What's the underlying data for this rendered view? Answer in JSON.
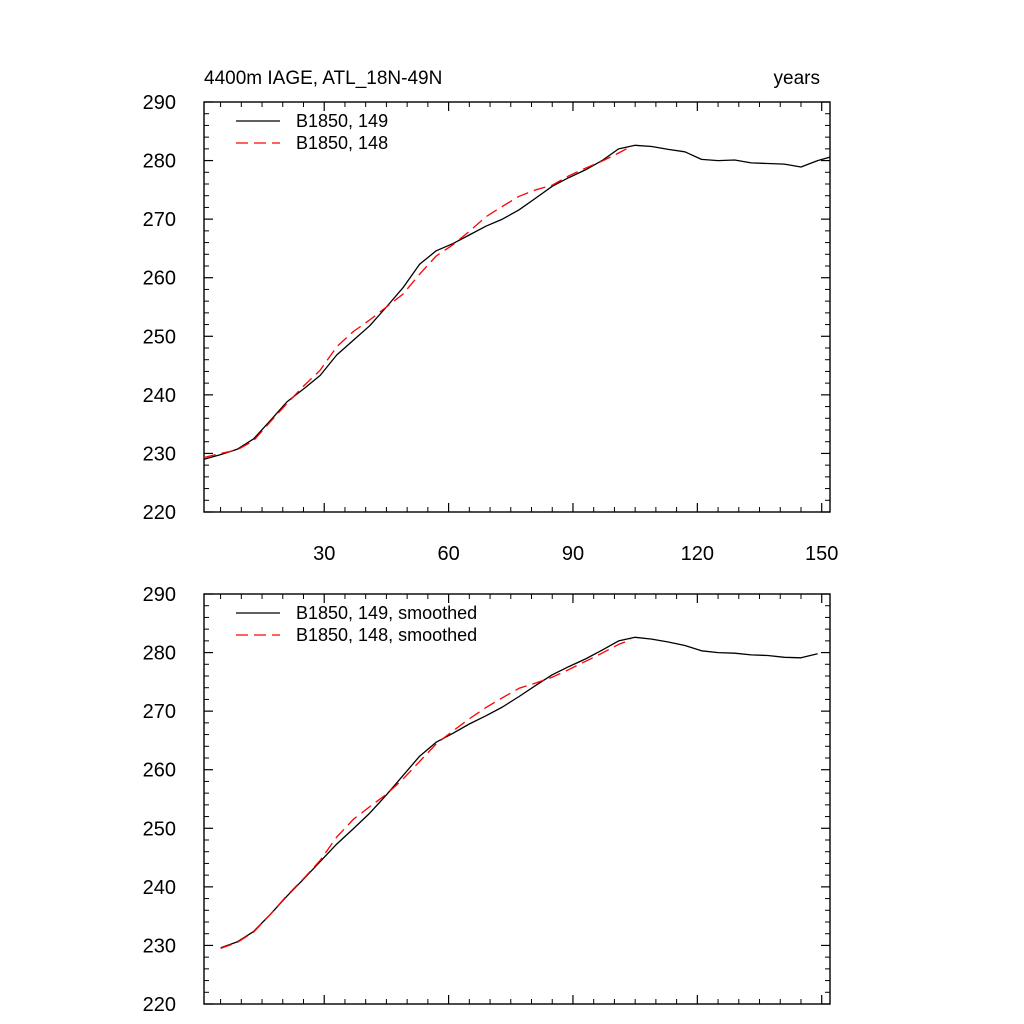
{
  "chart_data": [
    {
      "type": "line",
      "title": "4400m IAGE, ATL_18N-49N",
      "right_title": "years",
      "xlabel": "",
      "ylabel": "",
      "xlim": [
        1,
        152
      ],
      "ylim": [
        220,
        290
      ],
      "x_ticks": [
        30,
        60,
        90,
        120,
        150
      ],
      "y_ticks": [
        220,
        230,
        240,
        250,
        260,
        270,
        280,
        290
      ],
      "x_tick_labels": [
        "30",
        "60",
        "90",
        "120",
        "150"
      ],
      "y_tick_labels": [
        "220",
        "230",
        "240",
        "250",
        "260",
        "270",
        "280",
        "290"
      ],
      "show_x_tick_labels": true,
      "grid": false,
      "legend_position": "top-left",
      "series": [
        {
          "name": "B1850, 149",
          "color": "#000000",
          "dash": "solid",
          "x": [
            1,
            5,
            9,
            13,
            17,
            21,
            25,
            29,
            33,
            37,
            41,
            45,
            49,
            53,
            57,
            61,
            65,
            69,
            73,
            77,
            81,
            85,
            89,
            93,
            97,
            101,
            105,
            109,
            113,
            117,
            121,
            125,
            129,
            133,
            137,
            141,
            145,
            149,
            152
          ],
          "y": [
            229.0,
            229.8,
            230.7,
            232.5,
            235.6,
            238.8,
            241.0,
            243.3,
            246.8,
            249.3,
            251.8,
            255.0,
            258.3,
            262.3,
            264.6,
            265.8,
            267.3,
            268.8,
            270.0,
            271.6,
            273.6,
            275.6,
            277.1,
            278.4,
            280.0,
            282.0,
            282.6,
            282.4,
            281.9,
            281.5,
            280.2,
            280.0,
            280.1,
            279.6,
            279.5,
            279.4,
            278.9,
            280.0,
            280.6
          ]
        },
        {
          "name": "B1850, 148",
          "color": "#ff0000",
          "dash": "dashed",
          "x": [
            1,
            5,
            9,
            13,
            17,
            21,
            25,
            29,
            33,
            37,
            41,
            45,
            49,
            53,
            57,
            61,
            65,
            69,
            73,
            77,
            81,
            85,
            89,
            93,
            97,
            101,
            104
          ],
          "y": [
            229.3,
            230.0,
            230.6,
            232.2,
            235.4,
            238.5,
            241.5,
            244.2,
            248.2,
            250.8,
            252.8,
            255.0,
            257.2,
            260.6,
            263.7,
            265.6,
            267.9,
            270.4,
            272.2,
            273.9,
            275.0,
            275.8,
            277.4,
            278.7,
            279.9,
            281.3,
            282.4
          ]
        }
      ]
    },
    {
      "type": "line",
      "title": "",
      "xlabel": "",
      "ylabel": "",
      "xlim": [
        1,
        152
      ],
      "ylim": [
        220,
        290
      ],
      "x_ticks": [
        30,
        60,
        90,
        120,
        150
      ],
      "y_ticks": [
        220,
        230,
        240,
        250,
        260,
        270,
        280,
        290
      ],
      "x_tick_labels": [],
      "y_tick_labels": [
        "220",
        "230",
        "240",
        "250",
        "260",
        "270",
        "280",
        "290"
      ],
      "show_x_tick_labels": false,
      "grid": false,
      "legend_position": "top-left",
      "series": [
        {
          "name": "B1850, 149, smoothed",
          "color": "#000000",
          "dash": "solid",
          "x": [
            5,
            9,
            13,
            17,
            21,
            25,
            29,
            33,
            37,
            41,
            45,
            49,
            53,
            57,
            61,
            65,
            69,
            73,
            77,
            81,
            85,
            89,
            93,
            97,
            101,
            105,
            109,
            113,
            117,
            121,
            125,
            129,
            133,
            137,
            141,
            145,
            149
          ],
          "y": [
            229.6,
            230.6,
            232.4,
            235.3,
            238.4,
            241.3,
            244.3,
            247.3,
            249.9,
            252.6,
            255.7,
            259.0,
            262.3,
            264.7,
            266.2,
            267.8,
            269.2,
            270.7,
            272.5,
            274.4,
            276.2,
            277.6,
            278.9,
            280.4,
            282.0,
            282.6,
            282.3,
            281.8,
            281.2,
            280.3,
            280.0,
            279.9,
            279.6,
            279.5,
            279.2,
            279.1,
            279.8
          ]
        },
        {
          "name": "B1850, 148, smoothed",
          "color": "#ff0000",
          "dash": "dashed",
          "x": [
            5,
            9,
            13,
            17,
            21,
            25,
            29,
            33,
            37,
            41,
            45,
            49,
            53,
            57,
            61,
            65,
            69,
            73,
            77,
            81,
            85,
            89,
            93,
            97,
            101,
            104
          ],
          "y": [
            229.5,
            230.5,
            232.3,
            235.3,
            238.5,
            241.4,
            244.5,
            248.5,
            251.5,
            253.7,
            255.8,
            258.4,
            261.4,
            264.4,
            266.6,
            268.7,
            270.6,
            272.3,
            273.9,
            274.8,
            275.8,
            277.1,
            278.5,
            279.9,
            281.4,
            282.2
          ]
        }
      ]
    }
  ]
}
